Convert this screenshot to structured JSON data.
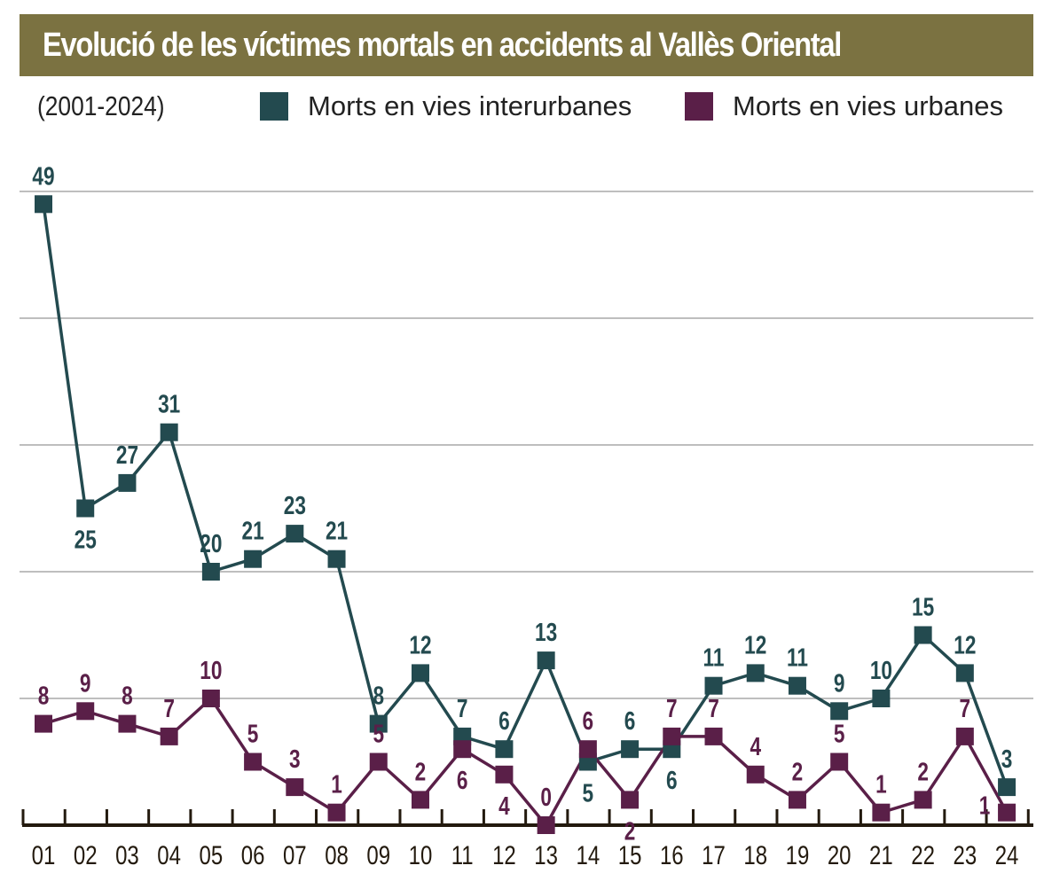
{
  "chart_data": {
    "type": "line",
    "title": "Evolució de les víctimes mortals en accidents al Vallès Oriental",
    "subtitle": "(2001-2024)",
    "categories": [
      "01",
      "02",
      "03",
      "04",
      "05",
      "06",
      "07",
      "08",
      "09",
      "10",
      "11",
      "12",
      "13",
      "14",
      "15",
      "16",
      "17",
      "18",
      "19",
      "20",
      "21",
      "22",
      "23",
      "24"
    ],
    "series": [
      {
        "name": "Morts en vies interurbanes",
        "color": "#234a4f",
        "values": [
          49,
          25,
          27,
          31,
          20,
          21,
          23,
          21,
          8,
          12,
          7,
          6,
          13,
          5,
          6,
          6,
          11,
          12,
          11,
          9,
          10,
          15,
          12,
          3
        ]
      },
      {
        "name": "Morts en vies urbanes",
        "color": "#5a1f48",
        "values": [
          8,
          9,
          8,
          7,
          10,
          5,
          3,
          1,
          5,
          2,
          6,
          4,
          0,
          6,
          2,
          7,
          7,
          4,
          2,
          5,
          1,
          2,
          7,
          1
        ]
      }
    ],
    "ylim": [
      0,
      50
    ],
    "gridlines": [
      10,
      20,
      30,
      40,
      50
    ],
    "grid": true,
    "y_tick_labels": false,
    "legend_placement": "top",
    "marker": "square",
    "data_labels": true,
    "title_bar_color": "#7b7241"
  }
}
